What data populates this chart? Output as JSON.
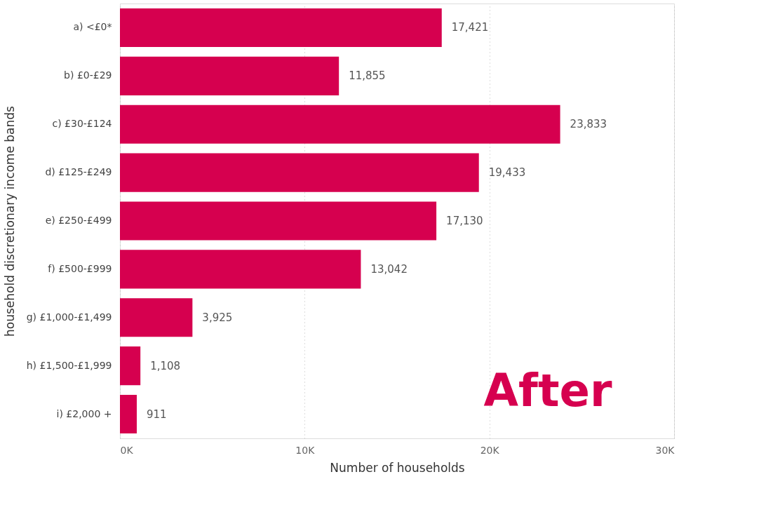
{
  "chart_data": {
    "type": "bar",
    "orientation": "horizontal",
    "xlabel": "Number of households",
    "ylabel": "household discretionary income bands",
    "categories": [
      "a) <£0*",
      "b) £0-£29",
      "c) £30-£124",
      "d) £125-£249",
      "e) £250-£499",
      "f) £500-£999",
      "g) £1,000-£1,499",
      "h) £1,500-£1,999",
      "i) £2,000 +"
    ],
    "values": [
      17421,
      11855,
      23833,
      19433,
      17130,
      13042,
      3925,
      1108,
      911
    ],
    "color": "#d6004f",
    "xlim": [
      0,
      30000
    ],
    "xticks": [
      {
        "value": 0,
        "label": "0K"
      },
      {
        "value": 10000,
        "label": "10K"
      },
      {
        "value": 20000,
        "label": "20K"
      },
      {
        "value": 30000,
        "label": "30K"
      }
    ],
    "value_labels": [
      "17,421",
      "11,855",
      "23,833",
      "19,433",
      "17,130",
      "13,042",
      "3,925",
      "1,108",
      "911"
    ],
    "grid": "x",
    "annotations": [
      "After"
    ]
  }
}
